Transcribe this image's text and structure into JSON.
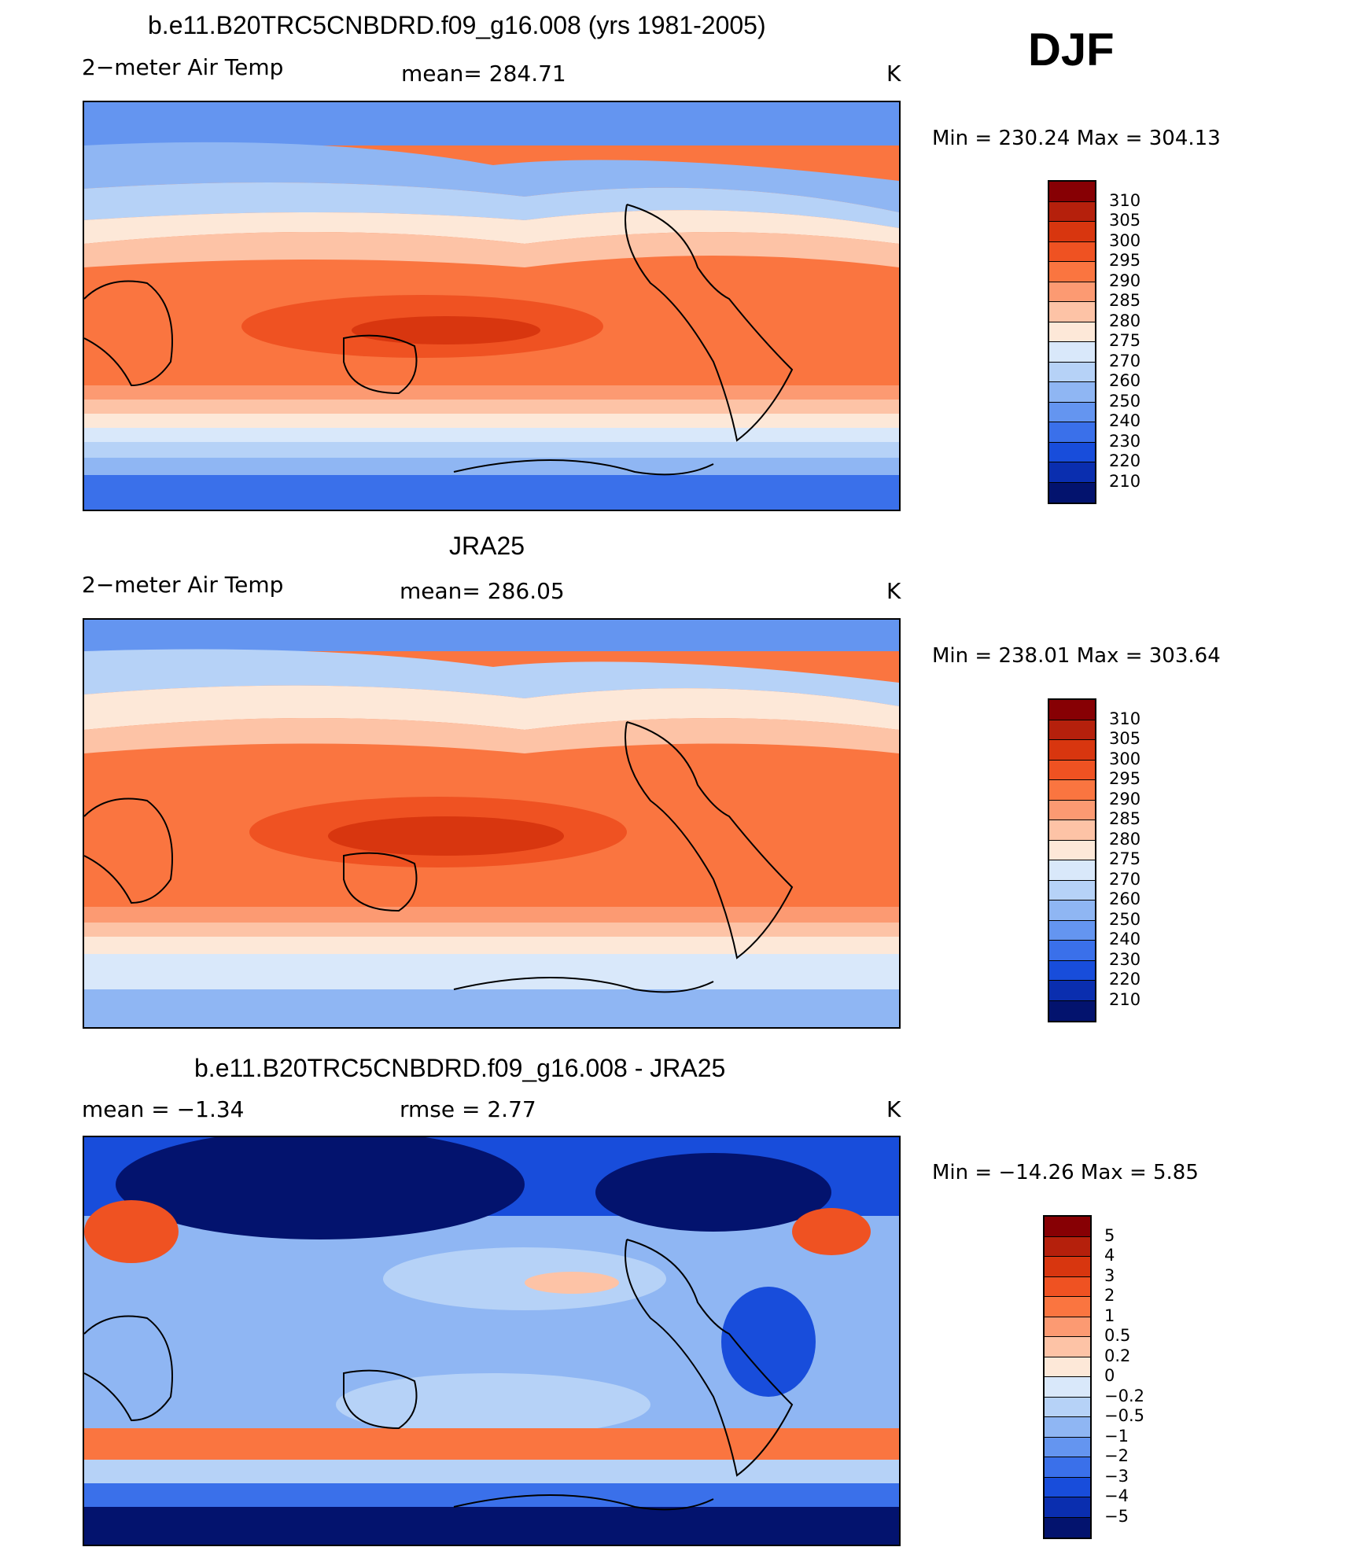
{
  "season": "DJF",
  "chart_data": [
    {
      "type": "heatmap",
      "title": "b.e11.B20TRC5CNBDRD.f09_g16.008 (yrs 1981-2005)",
      "variable": "2−meter Air Temp",
      "stat_text": "mean=  284.71",
      "units": "K",
      "minmax": "Min  =  230.24  Max  =  304.13",
      "levels": [
        "310",
        "305",
        "300",
        "295",
        "290",
        "285",
        "280",
        "275",
        "270",
        "260",
        "250",
        "240",
        "230",
        "220",
        "210"
      ],
      "colors": [
        "#870004",
        "#b5200c",
        "#d8360f",
        "#ef5222",
        "#fa7540",
        "#fc9a72",
        "#fdc3a6",
        "#fde8d8",
        "#d9e8fa",
        "#b6d2f7",
        "#8fb6f3",
        "#6495f0",
        "#3a70ea",
        "#184ddb",
        "#0a2eaf",
        "#03136e"
      ]
    },
    {
      "type": "heatmap",
      "title": "JRA25",
      "variable": "2−meter Air Temp",
      "stat_text": "mean=  286.05",
      "units": "K",
      "minmax": "Min  =  238.01  Max  =  303.64",
      "levels": [
        "310",
        "305",
        "300",
        "295",
        "290",
        "285",
        "280",
        "275",
        "270",
        "260",
        "250",
        "240",
        "230",
        "220",
        "210"
      ],
      "colors": [
        "#870004",
        "#b5200c",
        "#d8360f",
        "#ef5222",
        "#fa7540",
        "#fc9a72",
        "#fdc3a6",
        "#fde8d8",
        "#d9e8fa",
        "#b6d2f7",
        "#8fb6f3",
        "#6495f0",
        "#3a70ea",
        "#184ddb",
        "#0a2eaf",
        "#03136e"
      ]
    },
    {
      "type": "heatmap",
      "title": "b.e11.B20TRC5CNBDRD.f09_g16.008 - JRA25",
      "variable": "mean  =    −1.34",
      "stat_text": "rmse  =      2.77",
      "units": "K",
      "minmax": "Min  =  −14.26  Max  =      5.85",
      "levels": [
        "5",
        "4",
        "3",
        "2",
        "1",
        "0.5",
        "0.2",
        "0",
        "−0.2",
        "−0.5",
        "−1",
        "−2",
        "−3",
        "−4",
        "−5"
      ],
      "colors": [
        "#870004",
        "#b5200c",
        "#d8360f",
        "#ef5222",
        "#fa7540",
        "#fc9a72",
        "#fdc3a6",
        "#fde8d8",
        "#d9e8fa",
        "#b6d2f7",
        "#8fb6f3",
        "#6495f0",
        "#3a70ea",
        "#184ddb",
        "#0a2eaf",
        "#03136e"
      ]
    }
  ]
}
